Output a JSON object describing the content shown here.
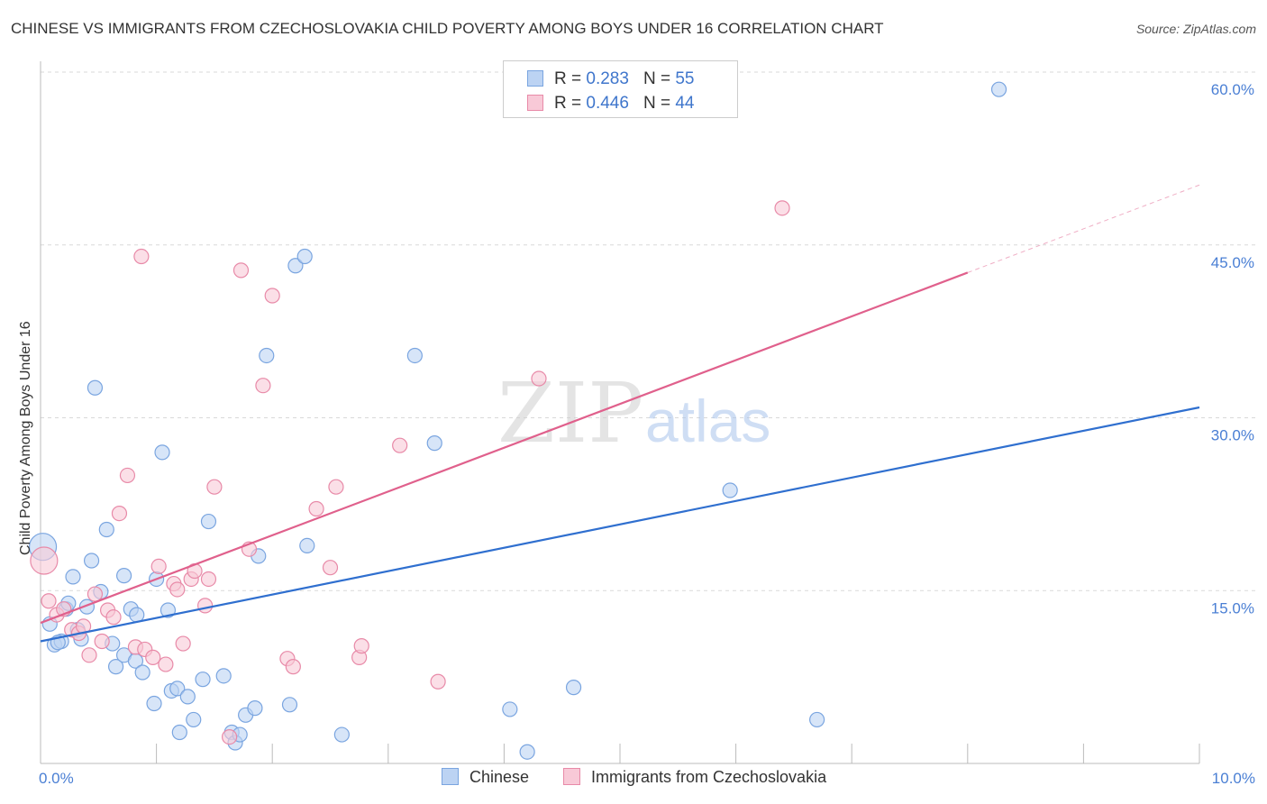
{
  "header": {
    "title": "CHINESE VS IMMIGRANTS FROM CZECHOSLOVAKIA CHILD POVERTY AMONG BOYS UNDER 16 CORRELATION CHART",
    "source": "Source: ZipAtlas.com"
  },
  "watermark": {
    "zip": "ZIP",
    "atlas": "atlas"
  },
  "legend": {
    "r_label": "R =",
    "n_label": "N =",
    "series": [
      {
        "name": "Chinese",
        "r": "0.283",
        "n": "55"
      },
      {
        "name": "Immigrants from Czechoslovakia",
        "r": "0.446",
        "n": "44"
      }
    ]
  },
  "colors": {
    "chinese_fill": "#bcd3f3",
    "chinese_stroke": "#7aa5e0",
    "chinese_line": "#2f6fcf",
    "czech_fill": "#f8c9d7",
    "czech_stroke": "#e88aa8",
    "czech_line": "#e0608c",
    "axis_text": "#4a7fd4",
    "grid": "#d9d9d9"
  },
  "chart_data": {
    "type": "scatter",
    "title": "CHINESE VS IMMIGRANTS FROM CZECHOSLOVAKIA CHILD POVERTY AMONG BOYS UNDER 16 CORRELATION CHART",
    "xlabel": "",
    "ylabel": "Child Poverty Among Boys Under 16",
    "x_unit": "%",
    "y_unit": "%",
    "xlim": [
      0,
      10
    ],
    "ylim": [
      0,
      60
    ],
    "x_tick_labels": [
      "0.0%",
      "10.0%"
    ],
    "y_ticks": [
      15,
      30,
      45,
      60
    ],
    "y_tick_labels": [
      "15.0%",
      "30.0%",
      "45.0%",
      "60.0%"
    ],
    "grid": true,
    "legend_position": "top-center",
    "series": [
      {
        "name": "Chinese",
        "r": 0.283,
        "n": 55,
        "trend": {
          "x": [
            0.0,
            10.0
          ],
          "y": [
            10.6,
            30.9
          ],
          "dashed_from": null
        },
        "points": [
          {
            "x": 0.02,
            "y": 18.8
          },
          {
            "x": 0.08,
            "y": 12.1
          },
          {
            "x": 0.12,
            "y": 10.3
          },
          {
            "x": 0.18,
            "y": 10.6
          },
          {
            "x": 0.22,
            "y": 13.4
          },
          {
            "x": 0.24,
            "y": 13.9
          },
          {
            "x": 0.28,
            "y": 16.2
          },
          {
            "x": 0.32,
            "y": 11.6
          },
          {
            "x": 0.35,
            "y": 10.8
          },
          {
            "x": 0.4,
            "y": 13.6
          },
          {
            "x": 0.44,
            "y": 17.6
          },
          {
            "x": 0.47,
            "y": 32.6
          },
          {
            "x": 0.52,
            "y": 14.9
          },
          {
            "x": 0.57,
            "y": 20.3
          },
          {
            "x": 0.62,
            "y": 10.4
          },
          {
            "x": 0.65,
            "y": 8.4
          },
          {
            "x": 0.72,
            "y": 16.3
          },
          {
            "x": 0.72,
            "y": 9.4
          },
          {
            "x": 0.78,
            "y": 13.4
          },
          {
            "x": 0.83,
            "y": 12.9
          },
          {
            "x": 0.82,
            "y": 8.9
          },
          {
            "x": 0.88,
            "y": 7.9
          },
          {
            "x": 0.98,
            "y": 5.2
          },
          {
            "x": 1.0,
            "y": 16.0
          },
          {
            "x": 1.05,
            "y": 27.0
          },
          {
            "x": 1.1,
            "y": 13.3
          },
          {
            "x": 1.13,
            "y": 6.3
          },
          {
            "x": 1.18,
            "y": 6.5
          },
          {
            "x": 1.2,
            "y": 2.7
          },
          {
            "x": 1.27,
            "y": 5.8
          },
          {
            "x": 1.32,
            "y": 3.8
          },
          {
            "x": 1.4,
            "y": 7.3
          },
          {
            "x": 1.45,
            "y": 21.0
          },
          {
            "x": 1.58,
            "y": 7.6
          },
          {
            "x": 1.65,
            "y": 2.7
          },
          {
            "x": 1.68,
            "y": 1.8
          },
          {
            "x": 1.72,
            "y": 2.5
          },
          {
            "x": 1.77,
            "y": 4.2
          },
          {
            "x": 1.85,
            "y": 4.8
          },
          {
            "x": 1.88,
            "y": 18.0
          },
          {
            "x": 1.95,
            "y": 35.4
          },
          {
            "x": 2.15,
            "y": 5.1
          },
          {
            "x": 2.2,
            "y": 43.2
          },
          {
            "x": 2.28,
            "y": 44.0
          },
          {
            "x": 2.3,
            "y": 18.9
          },
          {
            "x": 2.6,
            "y": 2.5
          },
          {
            "x": 3.23,
            "y": 35.4
          },
          {
            "x": 3.4,
            "y": 27.8
          },
          {
            "x": 4.05,
            "y": 4.7
          },
          {
            "x": 4.2,
            "y": 1.0
          },
          {
            "x": 4.6,
            "y": 6.6
          },
          {
            "x": 5.95,
            "y": 23.7
          },
          {
            "x": 6.7,
            "y": 3.8
          },
          {
            "x": 8.27,
            "y": 58.5
          },
          {
            "x": 0.15,
            "y": 10.5
          }
        ]
      },
      {
        "name": "Immigrants from Czechoslovakia",
        "r": 0.446,
        "n": 44,
        "trend": {
          "x": [
            0.0,
            10.0
          ],
          "y": [
            12.2,
            50.2
          ],
          "dashed_from": 8.0
        },
        "points": [
          {
            "x": 0.03,
            "y": 17.6
          },
          {
            "x": 0.07,
            "y": 14.1
          },
          {
            "x": 0.14,
            "y": 12.9
          },
          {
            "x": 0.2,
            "y": 13.4
          },
          {
            "x": 0.27,
            "y": 11.6
          },
          {
            "x": 0.33,
            "y": 11.3
          },
          {
            "x": 0.37,
            "y": 11.9
          },
          {
            "x": 0.42,
            "y": 9.4
          },
          {
            "x": 0.47,
            "y": 14.7
          },
          {
            "x": 0.53,
            "y": 10.6
          },
          {
            "x": 0.58,
            "y": 13.3
          },
          {
            "x": 0.63,
            "y": 12.7
          },
          {
            "x": 0.68,
            "y": 21.7
          },
          {
            "x": 0.75,
            "y": 25.0
          },
          {
            "x": 0.82,
            "y": 10.1
          },
          {
            "x": 0.87,
            "y": 44.0
          },
          {
            "x": 0.9,
            "y": 9.9
          },
          {
            "x": 0.97,
            "y": 9.2
          },
          {
            "x": 1.02,
            "y": 17.1
          },
          {
            "x": 1.08,
            "y": 8.6
          },
          {
            "x": 1.15,
            "y": 15.6
          },
          {
            "x": 1.18,
            "y": 15.1
          },
          {
            "x": 1.23,
            "y": 10.4
          },
          {
            "x": 1.3,
            "y": 16.0
          },
          {
            "x": 1.33,
            "y": 16.7
          },
          {
            "x": 1.42,
            "y": 13.7
          },
          {
            "x": 1.45,
            "y": 16.0
          },
          {
            "x": 1.5,
            "y": 24.0
          },
          {
            "x": 1.63,
            "y": 2.3
          },
          {
            "x": 1.73,
            "y": 42.8
          },
          {
            "x": 1.8,
            "y": 18.6
          },
          {
            "x": 1.92,
            "y": 32.8
          },
          {
            "x": 2.0,
            "y": 40.6
          },
          {
            "x": 2.13,
            "y": 9.1
          },
          {
            "x": 2.18,
            "y": 8.4
          },
          {
            "x": 2.38,
            "y": 22.1
          },
          {
            "x": 2.5,
            "y": 17.0
          },
          {
            "x": 2.55,
            "y": 24.0
          },
          {
            "x": 2.75,
            "y": 9.2
          },
          {
            "x": 2.77,
            "y": 10.2
          },
          {
            "x": 3.1,
            "y": 27.6
          },
          {
            "x": 3.43,
            "y": 7.1
          },
          {
            "x": 4.3,
            "y": 33.4
          },
          {
            "x": 6.4,
            "y": 48.2
          }
        ]
      }
    ]
  }
}
